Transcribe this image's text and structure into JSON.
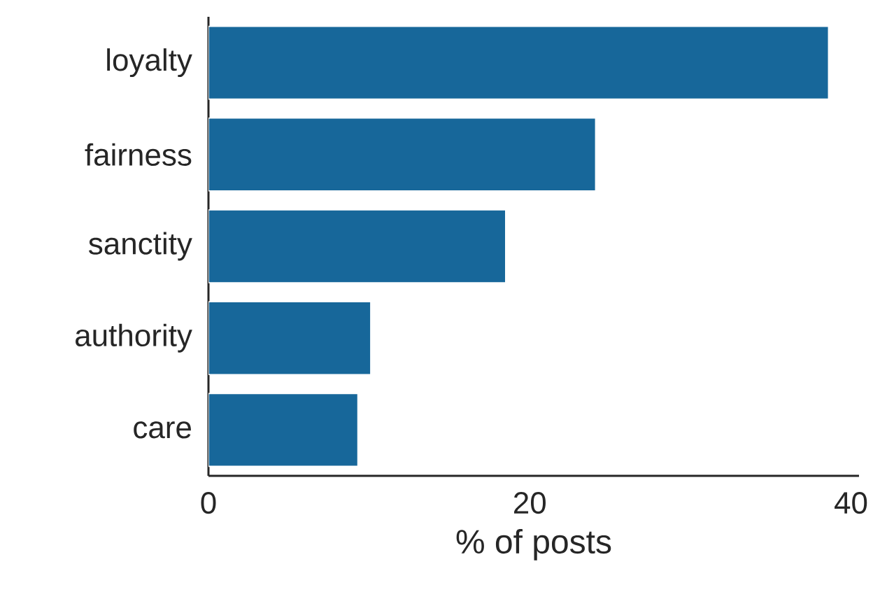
{
  "chart_data": {
    "type": "bar",
    "orientation": "horizontal",
    "xlabel": "% of posts",
    "categories": [
      "loyalty",
      "fairness",
      "sanctity",
      "authority",
      "care"
    ],
    "values": [
      38.6,
      24.1,
      18.5,
      10.1,
      9.3
    ],
    "color": "#17679a",
    "xlim": [
      0,
      40.5
    ],
    "xticks": [
      0,
      20,
      40
    ]
  }
}
